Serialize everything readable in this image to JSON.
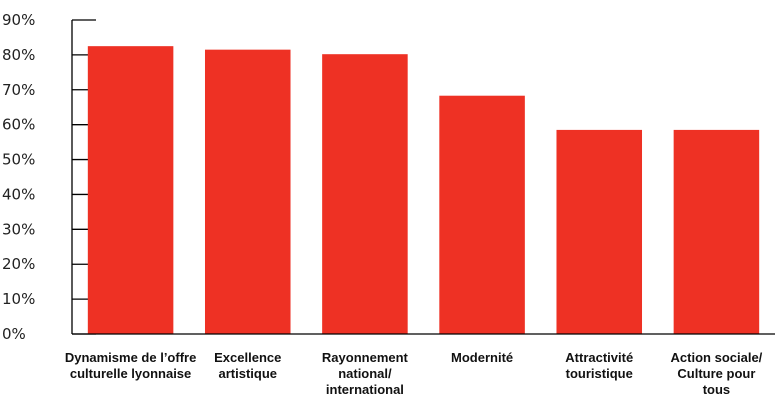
{
  "chart_data": {
    "type": "bar",
    "categories": [
      [
        "Dynamisme de l’offre",
        "culturelle lyonnaise"
      ],
      [
        "Excellence",
        "artistique"
      ],
      [
        "Rayonnement",
        "national/",
        "international"
      ],
      [
        "Modernité"
      ],
      [
        "Attractivité",
        "touristique"
      ],
      [
        "Action sociale/",
        "Culture pour",
        "tous"
      ]
    ],
    "values": [
      82.5,
      81.5,
      80.2,
      68.3,
      58.5,
      58.5
    ],
    "y_ticks": [
      "0%",
      "10%",
      "20%",
      "30%",
      "40%",
      "50%",
      "60%",
      "70%",
      "80%",
      "90%"
    ],
    "ylim": [
      0,
      90
    ],
    "grid": false,
    "bar_color": "#ee3124",
    "axis_color": "#000000"
  }
}
